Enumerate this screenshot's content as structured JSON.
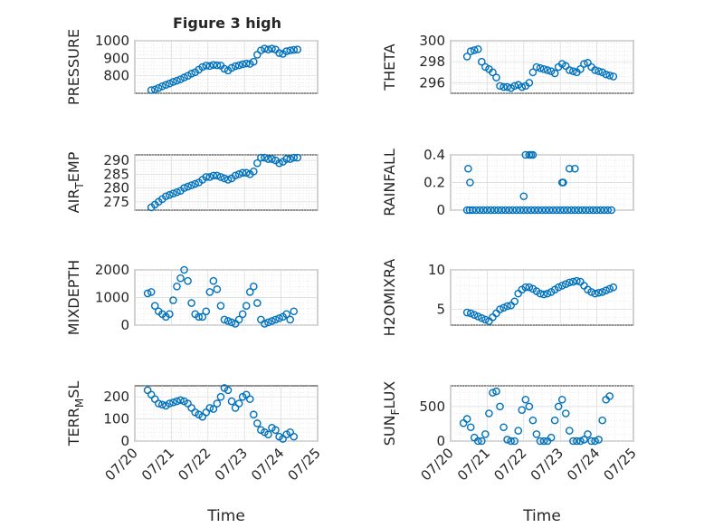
{
  "figure_title": "Figure 3 high",
  "colors": {
    "marker": "#0072bd",
    "axis": "#262626",
    "grid": "#d9d9d9"
  },
  "chart_data": [
    {
      "type": "scatter",
      "title": "Figure 3 high",
      "ylabel": "PRESSURE",
      "xlim": [
        "07/20",
        "07/25"
      ],
      "ylim": [
        700,
        1000
      ],
      "yticks": [
        800,
        900,
        1000
      ],
      "x": [
        20.45,
        20.55,
        20.65,
        20.75,
        20.85,
        20.95,
        21.05,
        21.15,
        21.25,
        21.35,
        21.45,
        21.55,
        21.65,
        21.75,
        21.85,
        21.95,
        22.05,
        22.15,
        22.25,
        22.35,
        22.45,
        22.55,
        22.65,
        22.75,
        22.85,
        22.95,
        23.05,
        23.15,
        23.25,
        23.35,
        23.45,
        23.55,
        23.65,
        23.75,
        23.85,
        23.95,
        24.05,
        24.15,
        24.25,
        24.35,
        24.45
      ],
      "y": [
        718,
        722,
        730,
        740,
        748,
        756,
        765,
        772,
        780,
        790,
        800,
        812,
        820,
        835,
        850,
        858,
        856,
        862,
        860,
        858,
        840,
        830,
        845,
        855,
        860,
        866,
        870,
        868,
        880,
        920,
        945,
        955,
        950,
        955,
        950,
        930,
        925,
        940,
        945,
        948,
        950
      ]
    },
    {
      "type": "scatter",
      "ylabel": "THETA",
      "xlim": [
        "07/20",
        "07/25"
      ],
      "ylim": [
        295,
        300
      ],
      "yticks": [
        296,
        298,
        300
      ],
      "x": [
        20.45,
        20.55,
        20.65,
        20.75,
        20.85,
        20.95,
        21.05,
        21.15,
        21.25,
        21.35,
        21.45,
        21.55,
        21.65,
        21.75,
        21.85,
        21.95,
        22.05,
        22.15,
        22.25,
        22.35,
        22.45,
        22.55,
        22.65,
        22.75,
        22.85,
        22.95,
        23.05,
        23.15,
        23.25,
        23.35,
        23.45,
        23.55,
        23.65,
        23.75,
        23.85,
        23.95,
        24.05,
        24.15,
        24.25,
        24.35,
        24.45
      ],
      "y": [
        298.5,
        299,
        299.1,
        299.2,
        298,
        297.5,
        297.3,
        297,
        296.5,
        295.7,
        295.6,
        295.6,
        295.5,
        295.7,
        295.8,
        295.6,
        295.7,
        296,
        297,
        297.5,
        297.4,
        297.3,
        297.2,
        297.1,
        296.9,
        297.5,
        297.8,
        297.6,
        297.2,
        297.1,
        297,
        297.3,
        297.8,
        297.9,
        297.5,
        297.2,
        297.1,
        297,
        296.8,
        296.7,
        296.6
      ]
    },
    {
      "type": "scatter",
      "ylabel": "AIR_TEMP",
      "xlim": [
        "07/20",
        "07/25"
      ],
      "ylim": [
        272,
        292
      ],
      "yticks": [
        275,
        280,
        285,
        290
      ],
      "x": [
        20.45,
        20.55,
        20.65,
        20.75,
        20.85,
        20.95,
        21.05,
        21.15,
        21.25,
        21.35,
        21.45,
        21.55,
        21.65,
        21.75,
        21.85,
        21.95,
        22.05,
        22.15,
        22.25,
        22.35,
        22.45,
        22.55,
        22.65,
        22.75,
        22.85,
        22.95,
        23.05,
        23.15,
        23.25,
        23.35,
        23.45,
        23.55,
        23.65,
        23.75,
        23.85,
        23.95,
        24.05,
        24.15,
        24.25,
        24.35,
        24.45
      ],
      "y": [
        273,
        274,
        275,
        276,
        277,
        277.5,
        278,
        278.5,
        279,
        280,
        280.5,
        281,
        281.5,
        282,
        283,
        284,
        284,
        284.5,
        284.5,
        284,
        283.5,
        283,
        283.5,
        284.5,
        285,
        285.5,
        285.5,
        285,
        286,
        289,
        291,
        291,
        290.5,
        290.5,
        290,
        289,
        289.5,
        290.5,
        290.5,
        291,
        291
      ]
    },
    {
      "type": "scatter",
      "ylabel": "RAINFALL",
      "xlim": [
        "07/20",
        "07/25"
      ],
      "ylim": [
        0,
        0.4
      ],
      "yticks": [
        0,
        0.2,
        0.4
      ],
      "x": [
        20.45,
        20.52,
        20.6,
        20.7,
        20.8,
        20.9,
        21.0,
        21.1,
        21.2,
        21.3,
        21.4,
        21.5,
        21.6,
        21.7,
        21.8,
        21.9,
        22.0,
        22.1,
        22.2,
        22.3,
        22.4,
        22.5,
        22.6,
        22.7,
        22.8,
        22.9,
        23.0,
        23.1,
        23.2,
        23.3,
        23.4,
        23.5,
        23.6,
        23.7,
        23.8,
        23.9,
        24.0,
        24.1,
        24.2,
        24.3,
        24.4,
        20.48,
        20.53,
        22.0,
        22.05,
        22.15,
        22.2,
        22.25,
        23.05,
        23.08,
        23.25,
        23.4
      ],
      "y": [
        0,
        0,
        0,
        0,
        0,
        0,
        0,
        0,
        0,
        0,
        0,
        0,
        0,
        0,
        0,
        0,
        0,
        0,
        0,
        0,
        0,
        0,
        0,
        0,
        0,
        0,
        0,
        0,
        0,
        0,
        0,
        0,
        0,
        0,
        0,
        0,
        0,
        0,
        0,
        0,
        0,
        0.3,
        0.2,
        0.1,
        0.4,
        0.4,
        0.4,
        0.4,
        0.2,
        0.2,
        0.3,
        0.3
      ]
    },
    {
      "type": "scatter",
      "ylabel": "MIXDEPTH",
      "xlim": [
        "07/20",
        "07/25"
      ],
      "ylim": [
        0,
        2000
      ],
      "yticks": [
        0,
        1000,
        2000
      ],
      "x": [
        20.35,
        20.45,
        20.55,
        20.65,
        20.75,
        20.85,
        20.95,
        21.05,
        21.15,
        21.25,
        21.35,
        21.45,
        21.55,
        21.65,
        21.75,
        21.85,
        21.95,
        22.05,
        22.15,
        22.25,
        22.35,
        22.45,
        22.55,
        22.65,
        22.75,
        22.85,
        22.95,
        23.05,
        23.15,
        23.25,
        23.35,
        23.45,
        23.55,
        23.65,
        23.75,
        23.85,
        23.95,
        24.05,
        24.15,
        24.25,
        24.35
      ],
      "y": [
        1150,
        1200,
        700,
        500,
        400,
        300,
        400,
        900,
        1400,
        1700,
        2000,
        1600,
        800,
        400,
        300,
        300,
        500,
        1200,
        1600,
        1300,
        700,
        200,
        150,
        100,
        50,
        200,
        400,
        700,
        1200,
        1400,
        800,
        200,
        50,
        100,
        150,
        200,
        250,
        300,
        400,
        200,
        500
      ]
    },
    {
      "type": "scatter",
      "ylabel": "H2OMIXRA",
      "xlim": [
        "07/20",
        "07/25"
      ],
      "ylim": [
        3,
        10
      ],
      "yticks": [
        5,
        10
      ],
      "x": [
        20.45,
        20.55,
        20.65,
        20.75,
        20.85,
        20.95,
        21.05,
        21.15,
        21.25,
        21.35,
        21.45,
        21.55,
        21.65,
        21.75,
        21.85,
        21.95,
        22.05,
        22.15,
        22.25,
        22.35,
        22.45,
        22.55,
        22.65,
        22.75,
        22.85,
        22.95,
        23.05,
        23.15,
        23.25,
        23.35,
        23.45,
        23.55,
        23.65,
        23.75,
        23.85,
        23.95,
        24.05,
        24.15,
        24.25,
        24.35,
        24.45
      ],
      "y": [
        4.6,
        4.5,
        4.3,
        4.1,
        3.9,
        3.7,
        3.5,
        4,
        4.5,
        5,
        5.2,
        5.4,
        5.5,
        6,
        7,
        7.5,
        7.8,
        7.8,
        7.6,
        7.3,
        7,
        6.9,
        7,
        7.2,
        7.5,
        7.8,
        8,
        8.2,
        8.4,
        8.5,
        8.6,
        8.5,
        8,
        7.5,
        7.2,
        7,
        7.1,
        7.2,
        7.4,
        7.6,
        7.8
      ]
    },
    {
      "type": "scatter",
      "ylabel": "TERR_MSL",
      "xlim": [
        "07/20",
        "07/25"
      ],
      "ylim": [
        0,
        250
      ],
      "yticks": [
        0,
        100,
        200
      ],
      "xticks": [
        "07/20",
        "07/21",
        "07/22",
        "07/23",
        "07/24",
        "07/25"
      ],
      "xlabel": "Time",
      "x": [
        20.35,
        20.45,
        20.55,
        20.65,
        20.75,
        20.85,
        20.95,
        21.05,
        21.15,
        21.25,
        21.35,
        21.45,
        21.55,
        21.65,
        21.75,
        21.85,
        21.95,
        22.05,
        22.15,
        22.25,
        22.35,
        22.45,
        22.55,
        22.65,
        22.75,
        22.85,
        22.95,
        23.05,
        23.15,
        23.25,
        23.35,
        23.45,
        23.55,
        23.65,
        23.75,
        23.85,
        23.95,
        24.05,
        24.15,
        24.25,
        24.35
      ],
      "y": [
        230,
        210,
        190,
        170,
        165,
        160,
        170,
        175,
        180,
        185,
        180,
        170,
        150,
        130,
        120,
        110,
        130,
        150,
        145,
        170,
        200,
        240,
        230,
        180,
        150,
        170,
        200,
        210,
        190,
        120,
        80,
        50,
        40,
        30,
        60,
        50,
        20,
        10,
        30,
        40,
        20
      ]
    },
    {
      "type": "scatter",
      "ylabel": "SUN_FLUX",
      "xlim": [
        "07/20",
        "07/25"
      ],
      "ylim": [
        0,
        800
      ],
      "yticks": [
        0,
        500
      ],
      "xticks": [
        "07/20",
        "07/21",
        "07/22",
        "07/23",
        "07/24",
        "07/25"
      ],
      "xlabel": "Time",
      "x": [
        20.35,
        20.45,
        20.55,
        20.65,
        20.75,
        20.85,
        20.95,
        21.05,
        21.15,
        21.25,
        21.35,
        21.45,
        21.55,
        21.65,
        21.75,
        21.85,
        21.95,
        22.05,
        22.15,
        22.25,
        22.35,
        22.45,
        22.55,
        22.65,
        22.75,
        22.85,
        22.95,
        23.05,
        23.15,
        23.25,
        23.35,
        23.45,
        23.55,
        23.65,
        23.75,
        23.85,
        23.95,
        24.05,
        24.15,
        24.25,
        24.35
      ],
      "y": [
        260,
        320,
        200,
        50,
        0,
        0,
        100,
        400,
        700,
        720,
        500,
        200,
        20,
        0,
        0,
        150,
        450,
        600,
        500,
        300,
        100,
        0,
        0,
        0,
        50,
        300,
        500,
        600,
        400,
        150,
        0,
        0,
        0,
        20,
        100,
        0,
        0,
        20,
        300,
        600,
        650
      ]
    }
  ]
}
